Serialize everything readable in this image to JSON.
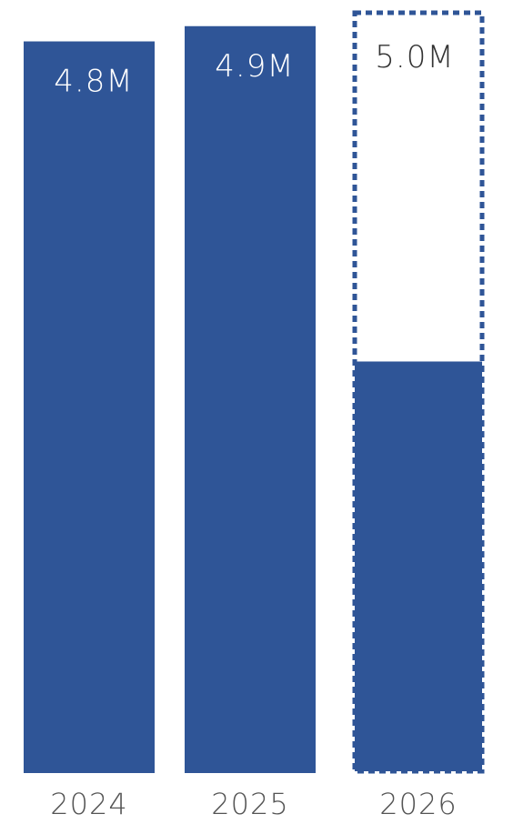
{
  "chart_data": {
    "type": "bar",
    "categories": [
      "2024",
      "2025",
      "2026"
    ],
    "values": [
      4.8,
      4.9,
      5.0
    ],
    "data_labels": [
      "4.8M",
      "4.9M",
      "5.0M"
    ],
    "ytd_partial": {
      "category": "2026",
      "value": 2.7
    },
    "projected_categories": [
      "2026"
    ],
    "title": "",
    "xlabel": "",
    "ylabel": "",
    "ylim": [
      0,
      5.0
    ],
    "grid": false,
    "legend": false,
    "colors": {
      "bar": "#2f5597",
      "projection_outline": "#2f5597",
      "value_label_on_bar": "#ffffff",
      "value_label_outline": "#333333",
      "tick_label": "#555555",
      "background": "#ffffff"
    }
  }
}
